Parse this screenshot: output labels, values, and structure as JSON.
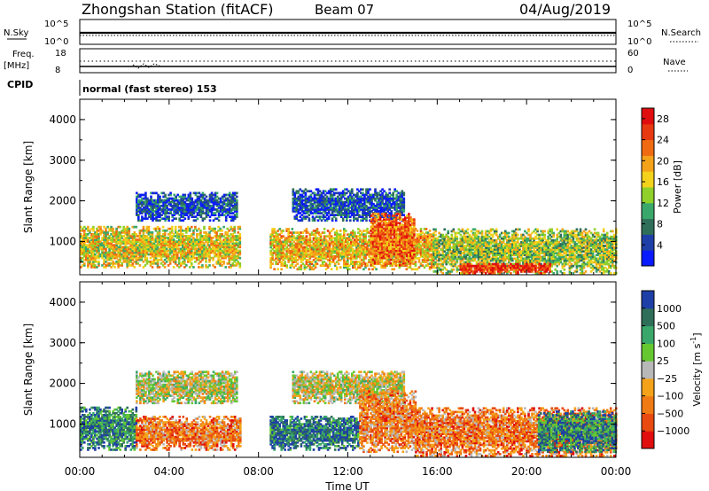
{
  "header": {
    "station": "Zhongshan Station (fitACF)",
    "beam": "Beam 07",
    "date": "04/Aug/2019"
  },
  "status_panels": {
    "nsky_label": "N.Sky",
    "nsky_ticks": [
      "10^5",
      "10^0"
    ],
    "nsearch_label": "N.Search",
    "nsearch_ticks": [
      "10^5",
      "10^0"
    ],
    "freq_label": "Freq.",
    "freq_unit": "[MHz]",
    "freq_ticks": [
      "18",
      "8"
    ],
    "nave_label": "Nave",
    "nave_ticks": [
      "60",
      "0"
    ],
    "cpid_label": "CPID",
    "cpid_text": "normal (fast stereo) 153"
  },
  "colors": {
    "power_scale": [
      "#0a1aff",
      "#1f3fa8",
      "#2f6f5a",
      "#3aa86a",
      "#8fd02a",
      "#f2d21a",
      "#f4a21a",
      "#f06a12",
      "#e83a10",
      "#e00e0e"
    ],
    "velocity_scale": [
      "#1f3fa8",
      "#2f6f5a",
      "#3aa86a",
      "#66c830",
      "#b8b8b8",
      "#f4a21a",
      "#f07a14",
      "#e84a10",
      "#e00e0e"
    ]
  },
  "chart_data": [
    {
      "type": "heatmap",
      "name": "power",
      "xlabel": "Time UT",
      "ylabel": "Slant Range [km]",
      "xticks": [
        "00:00",
        "04:00",
        "08:00",
        "12:00",
        "16:00",
        "20:00",
        "00:00"
      ],
      "xlim": [
        0,
        24
      ],
      "yticks": [
        "1000",
        "2000",
        "3000",
        "4000"
      ],
      "ylim": [
        180,
        4500
      ],
      "colorbar": {
        "label": "Power [dB]",
        "ticks": [
          "4",
          "8",
          "12",
          "16",
          "20",
          "24",
          "28"
        ],
        "range": [
          0,
          30
        ]
      },
      "echo_regions": [
        {
          "t": [
            0.0,
            7.2
          ],
          "r": [
            350,
            1350
          ],
          "level": 0.55
        },
        {
          "t": [
            2.5,
            7.0
          ],
          "r": [
            1500,
            2200
          ],
          "level": 0.15
        },
        {
          "t": [
            8.5,
            15.8
          ],
          "r": [
            300,
            1300
          ],
          "level": 0.6
        },
        {
          "t": [
            9.5,
            14.5
          ],
          "r": [
            1500,
            2300
          ],
          "level": 0.15
        },
        {
          "t": [
            13.0,
            15.0
          ],
          "r": [
            400,
            1700
          ],
          "level": 0.75
        },
        {
          "t": [
            15.8,
            24.0
          ],
          "r": [
            200,
            1300
          ],
          "level": 0.45
        },
        {
          "t": [
            17.0,
            21.0
          ],
          "r": [
            200,
            450
          ],
          "level": 0.9
        }
      ]
    },
    {
      "type": "heatmap",
      "name": "velocity",
      "xlabel": "Time UT",
      "ylabel": "Slant Range [km]",
      "xticks": [
        "00:00",
        "04:00",
        "08:00",
        "12:00",
        "16:00",
        "20:00",
        "00:00"
      ],
      "xlim": [
        0,
        24
      ],
      "yticks": [
        "1000",
        "2000",
        "3000",
        "4000"
      ],
      "ylim": [
        180,
        4500
      ],
      "colorbar": {
        "label": "Velocity [m s",
        "unit_exponent": "-1",
        "unit_suffix": "]",
        "ticks": [
          "1000",
          "500",
          "100",
          "25",
          "−25",
          "−100",
          "−500",
          "−1000"
        ]
      },
      "echo_regions": [
        {
          "t": [
            0.0,
            2.5
          ],
          "r": [
            350,
            1400
          ],
          "level": 0.2
        },
        {
          "t": [
            2.5,
            7.2
          ],
          "r": [
            350,
            1200
          ],
          "level": 0.72
        },
        {
          "t": [
            2.5,
            7.0
          ],
          "r": [
            1500,
            2300
          ],
          "level": 0.5
        },
        {
          "t": [
            8.5,
            12.5
          ],
          "r": [
            350,
            1200
          ],
          "level": 0.15
        },
        {
          "t": [
            9.5,
            14.5
          ],
          "r": [
            1500,
            2300
          ],
          "level": 0.5
        },
        {
          "t": [
            12.5,
            15.0
          ],
          "r": [
            300,
            1800
          ],
          "level": 0.7
        },
        {
          "t": [
            15.0,
            24.0
          ],
          "r": [
            200,
            1400
          ],
          "level": 0.72
        },
        {
          "t": [
            20.5,
            24.0
          ],
          "r": [
            300,
            1300
          ],
          "level": 0.2
        }
      ]
    }
  ]
}
